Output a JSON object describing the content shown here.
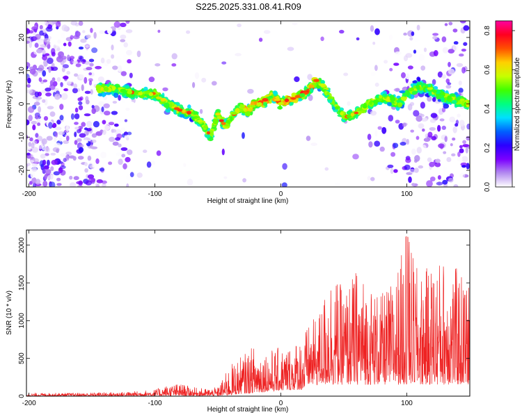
{
  "title": "S225.2025.331.08.41.R09",
  "chart_data": [
    {
      "type": "heatmap",
      "name": "spectrogram",
      "xlabel": "Height of straight line (km)",
      "ylabel": "Frequency (Hz)",
      "xlim": [
        -202,
        150
      ],
      "ylim": [
        -25,
        25
      ],
      "xticks": [
        -200,
        -100,
        0,
        100
      ],
      "yticks": [
        -20,
        -10,
        0,
        10,
        20
      ],
      "colorbar": {
        "label": "Normalized spectral amplitude",
        "range": [
          0,
          0.85
        ],
        "ticks": [
          0.0,
          0.2,
          0.4,
          0.6,
          0.8
        ],
        "tick_labels": [
          "0.0",
          "0.2",
          "0.4",
          "0.6",
          "0.8"
        ],
        "colors": [
          "#ffffff",
          "#b48cf0",
          "#7b00ff",
          "#2b00ff",
          "#0060ff",
          "#00e0ff",
          "#00ff80",
          "#40ff00",
          "#c8ff00",
          "#ffd000",
          "#ff5000",
          "#ff0020",
          "#ff00a0"
        ]
      },
      "ridge": {
        "description": "Bright signal ridge traced through the spectrogram",
        "x": [
          -145,
          -130,
          -120,
          -110,
          -100,
          -90,
          -80,
          -70,
          -62,
          -56,
          -50,
          -44,
          -38,
          -32,
          -26,
          -20,
          -12,
          -6,
          0,
          6,
          12,
          18,
          24,
          28,
          32,
          36,
          42,
          48,
          52,
          58,
          64,
          70,
          76,
          82,
          88,
          94,
          100,
          108,
          116,
          124,
          132,
          140,
          148
        ],
        "y": [
          4.5,
          4.5,
          3.5,
          3,
          3,
          0,
          -2,
          -3,
          -6,
          -10,
          -3,
          -7,
          -3,
          -1,
          -2,
          0,
          1,
          2.5,
          0,
          1,
          2,
          3,
          5,
          7,
          6,
          4,
          0,
          -3,
          -4,
          -3,
          -2,
          0,
          1,
          2,
          1,
          0,
          3,
          5,
          5,
          3,
          2,
          1,
          0
        ]
      }
    },
    {
      "type": "line",
      "name": "snr",
      "xlabel": "Height of straight line (km)",
      "ylabel": "SNR (10 * v/v)",
      "xlim": [
        -202,
        150
      ],
      "ylim": [
        0,
        2200
      ],
      "xticks": [
        -200,
        -100,
        0,
        100
      ],
      "yticks": [
        0,
        500,
        1000,
        1500,
        2000
      ],
      "color": "#ee2222",
      "envelope": {
        "description": "Approximate baseline and peak-envelope of the noisy SNR trace",
        "x": [
          -202,
          -160,
          -120,
          -100,
          -90,
          -80,
          -70,
          -60,
          -50,
          -40,
          -30,
          -20,
          -10,
          0,
          10,
          20,
          30,
          40,
          50,
          60,
          70,
          80,
          90,
          100,
          110,
          120,
          130,
          140,
          150
        ],
        "baseline": [
          15,
          15,
          20,
          25,
          30,
          30,
          25,
          20,
          20,
          60,
          130,
          180,
          250,
          300,
          330,
          350,
          370,
          380,
          380,
          380,
          380,
          380,
          380,
          380,
          380,
          380,
          380,
          380,
          380
        ],
        "peak": [
          40,
          45,
          60,
          90,
          150,
          170,
          120,
          100,
          120,
          420,
          550,
          700,
          620,
          650,
          720,
          900,
          1100,
          1700,
          1400,
          1700,
          1500,
          1350,
          1550,
          2150,
          1600,
          1780,
          1850,
          1700,
          1500
        ]
      }
    }
  ]
}
